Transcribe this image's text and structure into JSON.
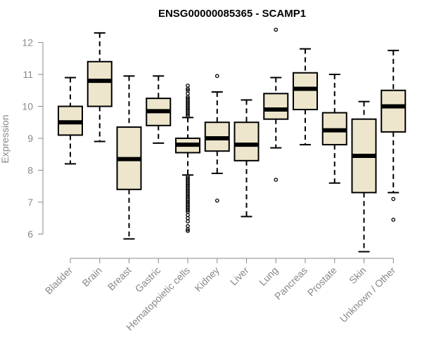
{
  "chart_data": {
    "type": "boxplot",
    "title": "ENSG00000085365 - SCAMP1",
    "xlabel": "",
    "ylabel": "Expression",
    "ylim": [
      5.5,
      12.5
    ],
    "yticks": [
      6,
      7,
      8,
      9,
      10,
      11,
      12
    ],
    "grid": false,
    "box_color": "#ede6cc",
    "median_color": "#000000",
    "categories": [
      "Bladder",
      "Brain",
      "Breast",
      "Gastric",
      "Hematopoietic cells",
      "Kidney",
      "Liver",
      "Lung",
      "Pancreas",
      "Prostate",
      "Skin",
      "Unknown / Other"
    ],
    "boxes": [
      {
        "whisker_low": 8.2,
        "q1": 9.1,
        "median": 9.5,
        "q3": 10.0,
        "whisker_high": 10.9,
        "outliers": []
      },
      {
        "whisker_low": 8.9,
        "q1": 10.0,
        "median": 10.8,
        "q3": 11.4,
        "whisker_high": 12.3,
        "outliers": []
      },
      {
        "whisker_low": 5.85,
        "q1": 7.4,
        "median": 8.35,
        "q3": 9.35,
        "whisker_high": 10.95,
        "outliers": []
      },
      {
        "whisker_low": 8.85,
        "q1": 9.4,
        "median": 9.85,
        "q3": 10.25,
        "whisker_high": 10.95,
        "outliers": []
      },
      {
        "whisker_low": 7.85,
        "q1": 8.55,
        "median": 8.8,
        "q3": 9.0,
        "whisker_high": 9.65,
        "outliers": [
          9.7,
          9.75,
          9.8,
          9.85,
          9.9,
          9.95,
          10.0,
          10.05,
          10.1,
          10.15,
          10.2,
          10.25,
          10.3,
          10.4,
          10.5,
          10.55,
          10.65,
          7.8,
          7.75,
          7.7,
          7.65,
          7.6,
          7.55,
          7.5,
          7.45,
          7.4,
          7.35,
          7.3,
          7.25,
          7.2,
          7.15,
          7.1,
          7.05,
          7.0,
          6.95,
          6.9,
          6.85,
          6.8,
          6.75,
          6.7,
          6.6,
          6.5,
          6.4,
          6.25,
          6.15,
          6.1
        ]
      },
      {
        "whisker_low": 7.9,
        "q1": 8.6,
        "median": 9.0,
        "q3": 9.5,
        "whisker_high": 10.45,
        "outliers": [
          10.95,
          7.05
        ]
      },
      {
        "whisker_low": 6.55,
        "q1": 8.3,
        "median": 8.8,
        "q3": 9.5,
        "whisker_high": 10.2,
        "outliers": []
      },
      {
        "whisker_low": 8.7,
        "q1": 9.6,
        "median": 9.9,
        "q3": 10.4,
        "whisker_high": 10.9,
        "outliers": [
          12.4,
          7.7
        ]
      },
      {
        "whisker_low": 8.8,
        "q1": 9.9,
        "median": 10.55,
        "q3": 11.05,
        "whisker_high": 11.8,
        "outliers": []
      },
      {
        "whisker_low": 7.6,
        "q1": 8.8,
        "median": 9.25,
        "q3": 9.8,
        "whisker_high": 11.0,
        "outliers": []
      },
      {
        "whisker_low": 5.45,
        "q1": 7.3,
        "median": 8.45,
        "q3": 9.6,
        "whisker_high": 10.15,
        "outliers": []
      },
      {
        "whisker_low": 7.3,
        "q1": 9.2,
        "median": 10.0,
        "q3": 10.5,
        "whisker_high": 11.75,
        "outliers": [
          7.1,
          6.45
        ]
      }
    ]
  }
}
